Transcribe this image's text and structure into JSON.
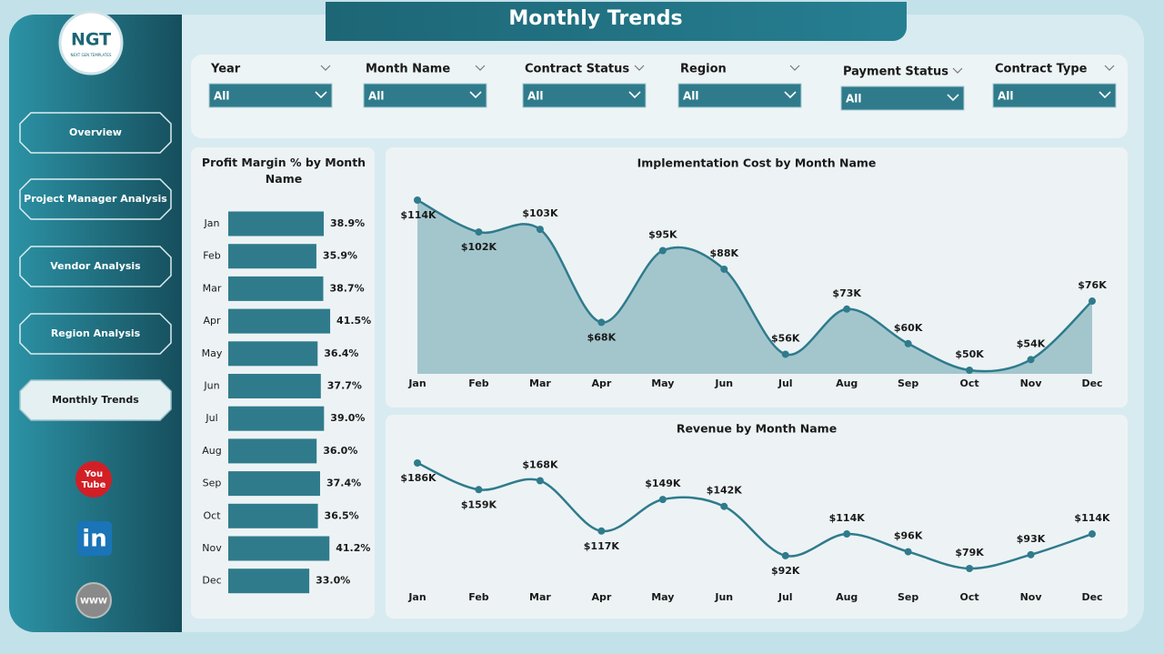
{
  "header": {
    "title": "Monthly Trends"
  },
  "logo": {
    "text": "NGT",
    "subtitle": "NEXT GEN TEMPLATES"
  },
  "nav": [
    "Overview",
    "Project Manager Analysis",
    "Vendor Analysis",
    "Region Analysis",
    "Monthly Trends"
  ],
  "active_nav": 4,
  "icons": {
    "youtube": [
      "You",
      "Tube"
    ],
    "linkedin": "in",
    "web": "WWW"
  },
  "filters": [
    {
      "label": "Year",
      "value": "All"
    },
    {
      "label": "Month Name",
      "value": "All"
    },
    {
      "label": "Contract Status",
      "value": "All"
    },
    {
      "label": "Region",
      "value": "All"
    },
    {
      "label": "Payment Status",
      "value": "All"
    },
    {
      "label": "Contract Type",
      "value": "All"
    }
  ],
  "chart_data": [
    {
      "type": "bar",
      "orientation": "horizontal",
      "title": "Profit Margin % by Month Name",
      "categories": [
        "Jan",
        "Feb",
        "Mar",
        "Apr",
        "May",
        "Jun",
        "Jul",
        "Aug",
        "Sep",
        "Oct",
        "Nov",
        "Dec"
      ],
      "values": [
        38.9,
        35.9,
        38.7,
        41.5,
        36.4,
        37.7,
        39.0,
        36.0,
        37.4,
        36.5,
        41.2,
        33.0
      ],
      "value_labels": [
        "38.9%",
        "35.9%",
        "38.7%",
        "41.5%",
        "36.4%",
        "37.7%",
        "39.0%",
        "36.0%",
        "37.4%",
        "36.5%",
        "41.2%",
        "33.0%"
      ],
      "color": "#2f7b8c"
    },
    {
      "type": "area",
      "title": "Implementation Cost by Month Name",
      "categories": [
        "Jan",
        "Feb",
        "Mar",
        "Apr",
        "May",
        "Jun",
        "Jul",
        "Aug",
        "Sep",
        "Oct",
        "Nov",
        "Dec"
      ],
      "values": [
        114,
        102,
        103,
        68,
        95,
        88,
        56,
        73,
        60,
        50,
        54,
        76
      ],
      "value_labels": [
        "$114K",
        "$102K",
        "$103K",
        "$68K",
        "$95K",
        "$88K",
        "$56K",
        "$73K",
        "$60K",
        "$50K",
        "$54K",
        "$76K"
      ],
      "color": "#2f7b8c",
      "fill": "#a3c6cd"
    },
    {
      "type": "line",
      "title": "Revenue by Month Name",
      "categories": [
        "Jan",
        "Feb",
        "Mar",
        "Apr",
        "May",
        "Jun",
        "Jul",
        "Aug",
        "Sep",
        "Oct",
        "Nov",
        "Dec"
      ],
      "values": [
        186,
        159,
        168,
        117,
        149,
        142,
        92,
        114,
        96,
        79,
        93,
        114
      ],
      "value_labels": [
        "$186K",
        "$159K",
        "$168K",
        "$117K",
        "$149K",
        "$142K",
        "$92K",
        "$114K",
        "$96K",
        "$79K",
        "$93K",
        "$114K"
      ],
      "color": "#2f7b8c"
    }
  ]
}
